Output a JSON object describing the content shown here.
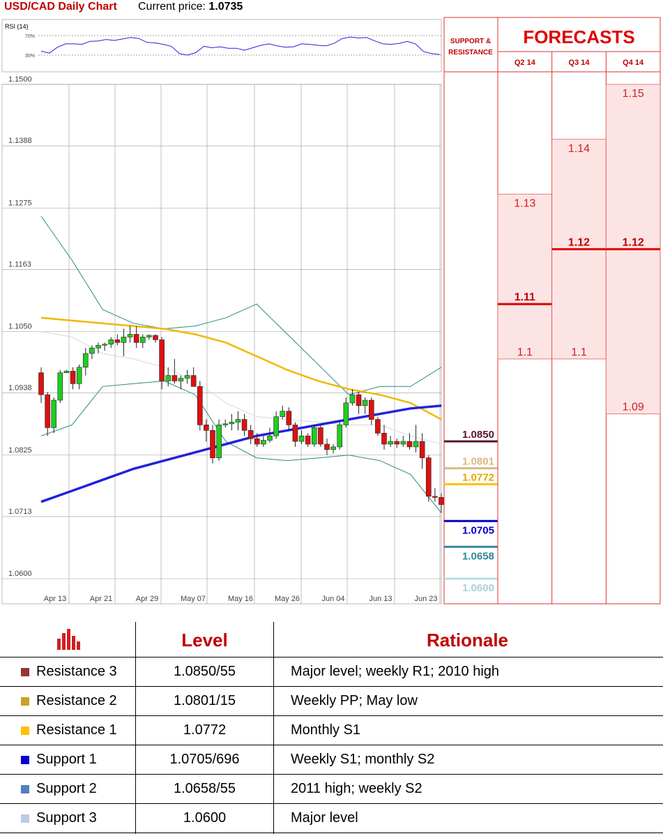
{
  "header": {
    "title": "USD/CAD Daily Chart",
    "price_label": "Current price:",
    "price_value": "1.0735"
  },
  "chart_data": {
    "type": "candlestick",
    "y_ticks": [
      "1.1500",
      "1.1388",
      "1.1275",
      "1.1163",
      "1.1050",
      "1.0938",
      "1.0825",
      "1.0713",
      "1.0600"
    ],
    "x_ticks": [
      "Apr 13",
      "Apr 21",
      "Apr 29",
      "May 07",
      "May 16",
      "May 26",
      "Jun 04",
      "Jun 13",
      "Jun 23"
    ],
    "ylim": [
      1.06,
      1.15
    ],
    "candles": [
      [
        1.0975,
        1.0985,
        1.092,
        1.0935
      ],
      [
        1.0935,
        1.094,
        1.086,
        1.0875
      ],
      [
        1.0875,
        1.093,
        1.0865,
        1.0925
      ],
      [
        1.0925,
        1.098,
        1.092,
        1.0975
      ],
      [
        1.0975,
        1.098,
        1.0975,
        1.0978
      ],
      [
        1.0978,
        1.0985,
        1.0945,
        1.0955
      ],
      [
        1.0955,
        1.099,
        1.0945,
        1.0985
      ],
      [
        1.0985,
        1.102,
        1.097,
        1.101
      ],
      [
        1.101,
        1.1025,
        1.1,
        1.102
      ],
      [
        1.102,
        1.103,
        1.101,
        1.1025
      ],
      [
        1.1025,
        1.103,
        1.1015,
        1.1027
      ],
      [
        1.1027,
        1.104,
        1.102,
        1.1035
      ],
      [
        1.1035,
        1.1045,
        1.1025,
        1.103
      ],
      [
        1.103,
        1.1055,
        1.1005,
        1.104
      ],
      [
        1.104,
        1.106,
        1.103,
        1.1045
      ],
      [
        1.1045,
        1.106,
        1.102,
        1.103
      ],
      [
        1.103,
        1.1045,
        1.102,
        1.104
      ],
      [
        1.104,
        1.1045,
        1.1035,
        1.1043
      ],
      [
        1.1043,
        1.1045,
        1.103,
        1.1035
      ],
      [
        1.1035,
        1.104,
        1.0945,
        1.096
      ],
      [
        1.096,
        1.0985,
        1.095,
        1.097
      ],
      [
        1.097,
        1.1,
        1.0955,
        1.096
      ],
      [
        1.096,
        1.097,
        1.0945,
        1.0965
      ],
      [
        1.0965,
        1.098,
        1.0955,
        1.097
      ],
      [
        1.097,
        1.0985,
        1.095,
        1.095
      ],
      [
        1.095,
        1.096,
        1.087,
        1.088
      ],
      [
        1.088,
        1.089,
        1.085,
        1.087
      ],
      [
        1.087,
        1.088,
        1.081,
        1.082
      ],
      [
        1.082,
        1.089,
        1.0815,
        1.088
      ],
      [
        1.088,
        1.089,
        1.0875,
        1.0882
      ],
      [
        1.0882,
        1.09,
        1.087,
        1.0885
      ],
      [
        1.0885,
        1.0905,
        1.087,
        1.089
      ],
      [
        1.089,
        1.09,
        1.086,
        1.087
      ],
      [
        1.087,
        1.088,
        1.0845,
        1.0855
      ],
      [
        1.0855,
        1.0865,
        1.084,
        1.0845
      ],
      [
        1.0845,
        1.086,
        1.084,
        1.0852
      ],
      [
        1.0852,
        1.0875,
        1.0848,
        1.086
      ],
      [
        1.086,
        1.0905,
        1.0855,
        1.0895
      ],
      [
        1.0895,
        1.0915,
        1.089,
        1.0905
      ],
      [
        1.0905,
        1.0912,
        1.087,
        1.088
      ],
      [
        1.088,
        1.0885,
        1.084,
        1.085
      ],
      [
        1.085,
        1.087,
        1.0845,
        1.086
      ],
      [
        1.086,
        1.0865,
        1.084,
        1.0845
      ],
      [
        1.0845,
        1.088,
        1.084,
        1.0875
      ],
      [
        1.0875,
        1.088,
        1.084,
        1.0845
      ],
      [
        1.0845,
        1.0855,
        1.0825,
        1.0835
      ],
      [
        1.0835,
        1.0845,
        1.0828,
        1.084
      ],
      [
        1.084,
        1.0885,
        1.0835,
        1.088
      ],
      [
        1.088,
        1.093,
        1.0875,
        1.092
      ],
      [
        1.092,
        1.0945,
        1.0915,
        1.0935
      ],
      [
        1.0935,
        1.094,
        1.09,
        1.0915
      ],
      [
        1.0915,
        1.093,
        1.09,
        1.0925
      ],
      [
        1.0925,
        1.093,
        1.088,
        1.089
      ],
      [
        1.089,
        1.0895,
        1.086,
        1.0865
      ],
      [
        1.0865,
        1.088,
        1.0835,
        1.0845
      ],
      [
        1.0845,
        1.086,
        1.084,
        1.085
      ],
      [
        1.085,
        1.0855,
        1.0838,
        1.0845
      ],
      [
        1.0845,
        1.086,
        1.084,
        1.085
      ],
      [
        1.085,
        1.0865,
        1.0835,
        1.084
      ],
      [
        1.084,
        1.088,
        1.083,
        1.085
      ],
      [
        1.085,
        1.0865,
        1.08,
        1.082
      ],
      [
        1.082,
        1.0825,
        1.074,
        1.075
      ],
      [
        1.075,
        1.0765,
        1.074,
        1.0748
      ],
      [
        1.0748,
        1.0755,
        1.072,
        1.0735
      ]
    ],
    "ma_yellow": [
      1.1075,
      1.107,
      1.1065,
      1.106,
      1.1055,
      1.1045,
      1.103,
      1.1005,
      1.098,
      1.096,
      1.0945,
      1.0935,
      1.092,
      1.089
    ],
    "ma_blue": [
      1.074,
      1.076,
      1.078,
      1.08,
      1.0815,
      1.083,
      1.0845,
      1.086,
      1.087,
      1.088,
      1.089,
      1.09,
      1.091,
      1.0915
    ],
    "bb_upper": [
      1.126,
      1.118,
      1.109,
      1.1065,
      1.1055,
      1.106,
      1.1075,
      1.11,
      1.1045,
      1.099,
      1.0935,
      1.095,
      1.095,
      1.0985
    ],
    "bb_lower": [
      1.086,
      1.088,
      1.095,
      1.0955,
      1.096,
      1.0935,
      1.085,
      1.082,
      1.0815,
      1.082,
      1.0825,
      1.0815,
      1.079,
      1.072
    ],
    "bb_mid": [
      1.105,
      1.104,
      1.101,
      1.1,
      1.0985,
      1.096,
      1.092,
      1.0895,
      1.089,
      1.0885,
      1.088,
      1.088,
      1.086,
      1.0845
    ],
    "rsi": {
      "label": "RSI (14)",
      "levels": [
        "70%",
        "30%"
      ],
      "values": [
        38,
        34,
        46,
        53,
        53,
        52,
        58,
        59,
        62,
        60,
        63,
        66,
        64,
        56,
        55,
        52,
        48,
        33,
        30,
        35,
        48,
        45,
        47,
        44,
        44,
        40,
        45,
        50,
        53,
        49,
        46,
        47,
        53,
        52,
        50,
        49,
        54,
        64,
        67,
        65,
        66,
        59,
        53,
        52,
        54,
        58,
        53,
        37,
        33,
        31
      ]
    }
  },
  "levels": [
    {
      "value": "1.0850",
      "color": "#5a1432",
      "text_color": "#5a1432"
    },
    {
      "value": "1.0801",
      "color": "#d6ba84",
      "text_color": "#d6ba84"
    },
    {
      "value": "1.0772",
      "color": "#ffc000",
      "text_color": "#e0a800"
    },
    {
      "value": "1.0705",
      "color": "#0000cc",
      "text_color": "#0000cc"
    },
    {
      "value": "1.0658",
      "color": "#31869b",
      "text_color": "#31869b"
    },
    {
      "value": "1.0600",
      "color": "#b7dde8",
      "text_color": "#a9cfd8"
    }
  ],
  "forecasts": {
    "title": "FORECASTS",
    "sr_label_1": "SUPPORT &",
    "sr_label_2": "RESISTANCE",
    "columns": [
      {
        "label": "Q2 14",
        "low": "1.1",
        "mid": "1.11",
        "high": "1.13"
      },
      {
        "label": "Q3 14",
        "low": "1.1",
        "mid": "1.12",
        "high": "1.14"
      },
      {
        "label": "Q4 14",
        "low": "1.09",
        "mid": "1.12",
        "high": "1.15"
      }
    ]
  },
  "table": {
    "headers": {
      "level": "Level",
      "rationale": "Rationale"
    },
    "rows": [
      {
        "name": "Resistance 3",
        "level": "1.0850/55",
        "rationale": "Major level; weekly R1; 2010 high",
        "color": "#953735"
      },
      {
        "name": "Resistance 2",
        "level": "1.0801/15",
        "rationale": "Weekly PP; May low",
        "color": "#c9a028"
      },
      {
        "name": "Resistance 1",
        "level": "1.0772",
        "rationale": "Monthly S1",
        "color": "#ffc000"
      },
      {
        "name": "Support 1",
        "level": "1.0705/696",
        "rationale": "Weekly S1; monthly S2",
        "color": "#0000cc"
      },
      {
        "name": "Support 2",
        "level": "1.0658/55",
        "rationale": "2011 high; weekly S2",
        "color": "#4f81bd"
      },
      {
        "name": "Support 3",
        "level": "1.0600",
        "rationale": "Major level",
        "color": "#b8cce4"
      }
    ]
  }
}
